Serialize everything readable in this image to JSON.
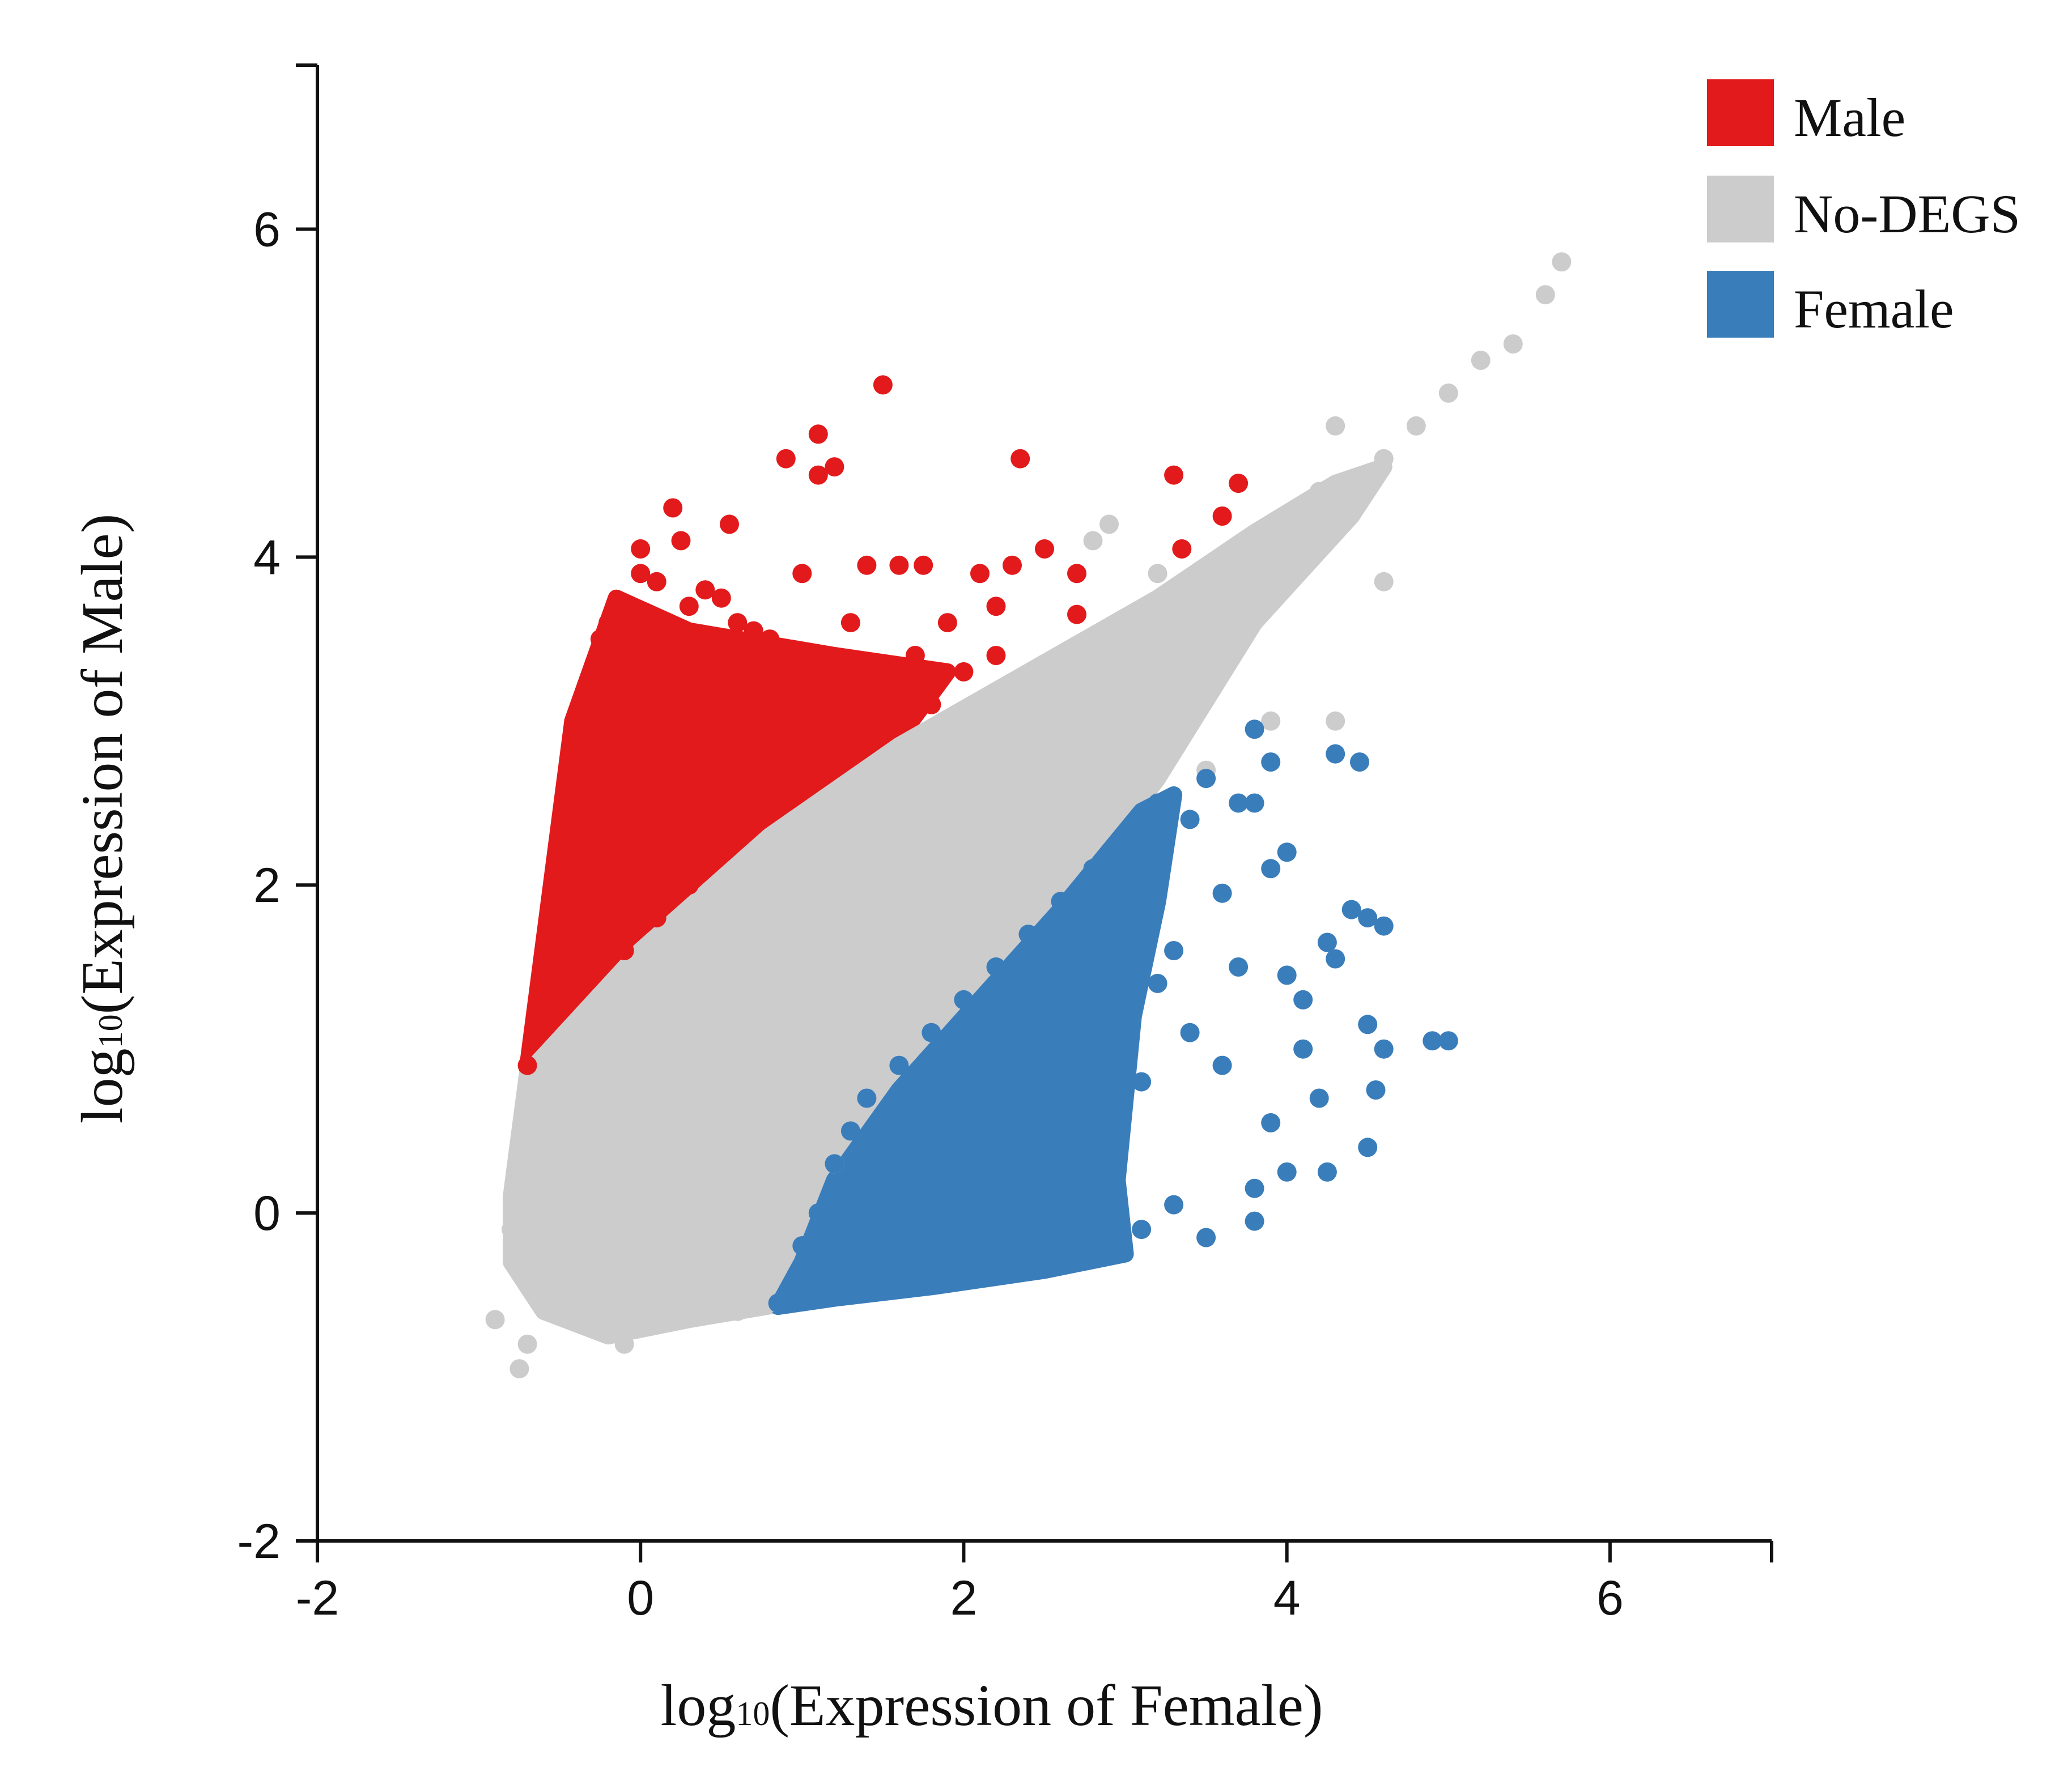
{
  "chart_data": {
    "type": "scatter",
    "title": "",
    "xlabel": {
      "prefix": "log",
      "sub": "10",
      "suffix": "(Expression of Female)"
    },
    "ylabel": {
      "prefix": "log",
      "sub": "10",
      "suffix": "(Expression of Male)"
    },
    "xlim": [
      -2,
      7
    ],
    "ylim": [
      -2,
      7
    ],
    "xticks": [
      -2,
      0,
      2,
      4,
      6
    ],
    "yticks": [
      -2,
      0,
      2,
      4,
      6
    ],
    "xtick_labels": [
      "-2",
      "0",
      "2",
      "4",
      "6"
    ],
    "ytick_labels": [
      "-2",
      "0",
      "2",
      "4",
      "6"
    ],
    "grid": false,
    "legend_position": "top-right",
    "series": [
      {
        "name": "Male",
        "color": "#e31a1c",
        "points": [
          [
            -0.7,
            0.9
          ],
          [
            -0.6,
            1.3
          ],
          [
            -0.55,
            1.8
          ],
          [
            -0.5,
            2.3
          ],
          [
            -0.45,
            2.6
          ],
          [
            -0.4,
            2.9
          ],
          [
            -0.35,
            3.1
          ],
          [
            -0.3,
            3.3
          ],
          [
            -0.25,
            3.5
          ],
          [
            -0.2,
            3.6
          ],
          [
            -0.15,
            3.7
          ],
          [
            -0.1,
            3.55
          ],
          [
            0.0,
            4.05
          ],
          [
            0.0,
            3.9
          ],
          [
            0.1,
            3.85
          ],
          [
            0.2,
            4.3
          ],
          [
            0.25,
            4.1
          ],
          [
            0.3,
            3.7
          ],
          [
            0.4,
            3.8
          ],
          [
            0.5,
            3.75
          ],
          [
            0.55,
            4.2
          ],
          [
            0.6,
            3.6
          ],
          [
            0.7,
            3.55
          ],
          [
            0.8,
            3.5
          ],
          [
            0.9,
            4.6
          ],
          [
            1.0,
            3.9
          ],
          [
            1.1,
            4.75
          ],
          [
            1.1,
            4.5
          ],
          [
            1.2,
            4.55
          ],
          [
            1.3,
            3.6
          ],
          [
            1.4,
            3.95
          ],
          [
            1.5,
            5.05
          ],
          [
            1.6,
            3.95
          ],
          [
            1.7,
            3.4
          ],
          [
            1.75,
            3.95
          ],
          [
            1.9,
            3.6
          ],
          [
            2.1,
            3.9
          ],
          [
            2.2,
            3.7
          ],
          [
            2.3,
            3.95
          ],
          [
            2.35,
            4.6
          ],
          [
            2.5,
            4.05
          ],
          [
            2.7,
            3.65
          ],
          [
            2.7,
            3.9
          ],
          [
            3.3,
            4.5
          ],
          [
            3.35,
            4.05
          ],
          [
            3.6,
            4.25
          ],
          [
            3.7,
            4.45
          ],
          [
            -0.3,
            2.0
          ],
          [
            -0.2,
            2.5
          ],
          [
            0.0,
            2.2
          ],
          [
            0.2,
            2.7
          ],
          [
            0.4,
            2.4
          ],
          [
            0.6,
            2.9
          ],
          [
            0.8,
            2.6
          ],
          [
            1.0,
            3.1
          ],
          [
            1.2,
            3.0
          ],
          [
            1.4,
            3.3
          ],
          [
            1.6,
            3.2
          ],
          [
            1.8,
            3.1
          ],
          [
            2.0,
            3.3
          ],
          [
            2.2,
            3.4
          ],
          [
            0.1,
            1.8
          ],
          [
            0.3,
            2.0
          ],
          [
            -0.1,
            1.6
          ],
          [
            0.5,
            2.3
          ]
        ]
      },
      {
        "name": "No-DEGS",
        "color": "#cccccc",
        "points": [
          [
            -0.9,
            -0.65
          ],
          [
            -0.8,
            -0.1
          ],
          [
            -0.75,
            -0.95
          ],
          [
            -0.7,
            -0.8
          ],
          [
            -0.6,
            0.1
          ],
          [
            -0.5,
            -0.5
          ],
          [
            -0.4,
            -0.2
          ],
          [
            -0.3,
            -0.7
          ],
          [
            -0.2,
            -0.3
          ],
          [
            -0.1,
            -0.8
          ],
          [
            0.0,
            -0.7
          ],
          [
            0.2,
            -0.5
          ],
          [
            0.4,
            -0.4
          ],
          [
            0.6,
            -0.6
          ],
          [
            0.8,
            -0.55
          ],
          [
            -0.6,
            0.5
          ],
          [
            -0.4,
            0.8
          ],
          [
            -0.2,
            1.2
          ],
          [
            0.0,
            1.0
          ],
          [
            0.2,
            1.5
          ],
          [
            0.4,
            1.4
          ],
          [
            0.6,
            1.9
          ],
          [
            0.8,
            1.7
          ],
          [
            1.0,
            2.2
          ],
          [
            1.2,
            2.0
          ],
          [
            1.4,
            2.5
          ],
          [
            1.6,
            2.3
          ],
          [
            1.8,
            2.8
          ],
          [
            2.0,
            2.6
          ],
          [
            2.2,
            3.0
          ],
          [
            2.4,
            2.9
          ],
          [
            2.6,
            3.3
          ],
          [
            2.8,
            3.2
          ],
          [
            3.0,
            3.5
          ],
          [
            3.2,
            3.4
          ],
          [
            3.4,
            3.8
          ],
          [
            3.6,
            3.7
          ],
          [
            3.8,
            4.1
          ],
          [
            4.0,
            4.0
          ],
          [
            4.2,
            4.4
          ],
          [
            4.4,
            4.3
          ],
          [
            4.6,
            4.6
          ],
          [
            4.8,
            4.8
          ],
          [
            5.0,
            5.0
          ],
          [
            5.2,
            5.2
          ],
          [
            5.4,
            5.3
          ],
          [
            5.6,
            5.6
          ],
          [
            5.7,
            5.8
          ],
          [
            4.3,
            4.8
          ],
          [
            4.5,
            4.5
          ],
          [
            4.6,
            3.85
          ],
          [
            3.9,
            3.0
          ],
          [
            3.5,
            2.7
          ],
          [
            4.3,
            3.0
          ],
          [
            2.8,
            4.1
          ],
          [
            2.9,
            4.2
          ],
          [
            3.2,
            3.9
          ],
          [
            0.5,
            0.5
          ],
          [
            0.8,
            0.2
          ],
          [
            1.0,
            0.8
          ],
          [
            1.2,
            0.3
          ],
          [
            1.5,
            1.2
          ],
          [
            1.8,
            1.5
          ],
          [
            2.1,
            1.7
          ],
          [
            2.4,
            2.1
          ],
          [
            2.7,
            2.4
          ],
          [
            3.0,
            2.7
          ],
          [
            -0.3,
            0.0
          ],
          [
            0.1,
            0.2
          ],
          [
            0.3,
            -0.1
          ],
          [
            -0.5,
            0.3
          ],
          [
            0.6,
            0.9
          ],
          [
            1.1,
            1.3
          ],
          [
            0.9,
            1.4
          ],
          [
            1.3,
            1.8
          ]
        ]
      },
      {
        "name": "Female",
        "color": "#3a7dbb",
        "points": [
          [
            0.85,
            -0.55
          ],
          [
            1.0,
            -0.2
          ],
          [
            1.1,
            0.0
          ],
          [
            1.2,
            0.3
          ],
          [
            1.3,
            0.5
          ],
          [
            1.4,
            0.7
          ],
          [
            1.5,
            0.2
          ],
          [
            1.6,
            0.9
          ],
          [
            1.7,
            0.6
          ],
          [
            1.8,
            1.1
          ],
          [
            1.9,
            0.4
          ],
          [
            2.0,
            1.3
          ],
          [
            2.1,
            0.8
          ],
          [
            2.2,
            1.5
          ],
          [
            2.3,
            1.0
          ],
          [
            2.4,
            1.7
          ],
          [
            2.5,
            0.9
          ],
          [
            2.6,
            1.9
          ],
          [
            2.7,
            0.5
          ],
          [
            2.8,
            2.1
          ],
          [
            2.9,
            1.2
          ],
          [
            3.0,
            2.3
          ],
          [
            3.1,
            0.8
          ],
          [
            3.2,
            2.5
          ],
          [
            3.3,
            1.6
          ],
          [
            3.4,
            2.4
          ],
          [
            3.5,
            2.65
          ],
          [
            3.6,
            1.95
          ],
          [
            3.7,
            2.5
          ],
          [
            3.7,
            1.5
          ],
          [
            3.8,
            2.95
          ],
          [
            3.8,
            2.5
          ],
          [
            3.9,
            2.75
          ],
          [
            3.9,
            2.1
          ],
          [
            4.0,
            2.2
          ],
          [
            4.0,
            1.45
          ],
          [
            4.1,
            1.3
          ],
          [
            4.25,
            1.65
          ],
          [
            4.3,
            1.55
          ],
          [
            4.3,
            2.8
          ],
          [
            4.45,
            2.75
          ],
          [
            4.4,
            1.85
          ],
          [
            4.5,
            1.8
          ],
          [
            4.6,
            1.75
          ],
          [
            4.5,
            1.15
          ],
          [
            4.55,
            0.75
          ],
          [
            4.6,
            1.0
          ],
          [
            4.5,
            0.4
          ],
          [
            4.25,
            0.25
          ],
          [
            4.2,
            0.7
          ],
          [
            4.0,
            0.25
          ],
          [
            3.9,
            0.55
          ],
          [
            3.8,
            0.15
          ],
          [
            3.8,
            -0.05
          ],
          [
            3.5,
            -0.15
          ],
          [
            3.3,
            0.05
          ],
          [
            3.1,
            -0.1
          ],
          [
            4.9,
            1.05
          ],
          [
            5.0,
            1.05
          ],
          [
            4.1,
            1.0
          ],
          [
            3.6,
            0.9
          ],
          [
            3.4,
            1.1
          ],
          [
            2.9,
            0.0
          ],
          [
            2.6,
            -0.2
          ],
          [
            2.2,
            -0.3
          ],
          [
            1.6,
            -0.4
          ],
          [
            1.2,
            -0.45
          ],
          [
            3.0,
            1.8
          ],
          [
            3.2,
            1.4
          ],
          [
            2.8,
            1.6
          ]
        ]
      }
    ]
  },
  "legend": [
    {
      "label": "Male",
      "color": "#e31a1c"
    },
    {
      "label": "No-DEGS",
      "color": "#cccccc"
    },
    {
      "label": "Female",
      "color": "#3a7dbb"
    }
  ]
}
